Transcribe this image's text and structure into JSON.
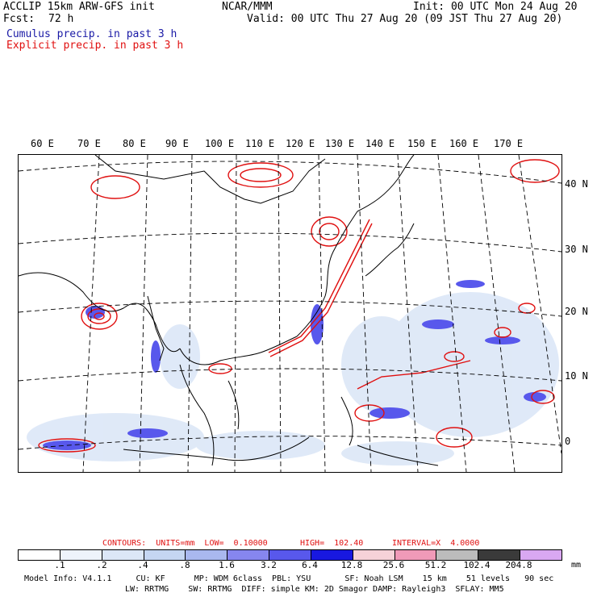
{
  "header": {
    "model_line": "ACCLIP 15km ARW-GFS init",
    "fcst_label": "Fcst:",
    "fcst_value": "72 h",
    "source": "NCAR/MMM",
    "init": "Init: 00 UTC Mon 24 Aug 20",
    "valid": "Valid: 00 UTC Thu 27 Aug 20 (09 JST Thu 27 Aug 20)",
    "legend_cumulus": "Cumulus precip. in past 3 h",
    "legend_explicit": "Explicit precip. in past 3 h"
  },
  "colors": {
    "cumulus": "#1a1aa6",
    "explicit": "#e01010"
  },
  "map": {
    "lon_labels": [
      "60 E",
      "70 E",
      "80 E",
      "90 E",
      "100 E",
      "110 E",
      "120 E",
      "130 E",
      "140 E",
      "150 E",
      "160 E",
      "170 E"
    ],
    "lat_labels": [
      "40 N",
      "30 N",
      "20 N",
      "10 N",
      "0"
    ]
  },
  "contours": {
    "units": "CONTOURS:  UNITS=mm  LOW=  0.10000",
    "high": "HIGH=  102.40",
    "interval": "INTERVAL=X  4.0000"
  },
  "colorbar": {
    "ticks": [
      ".1",
      ".2",
      ".4",
      ".8",
      "1.6",
      "3.2",
      "6.4",
      "12.8",
      "25.6",
      "51.2",
      "102.4",
      "204.8"
    ],
    "units": "mm",
    "colors": [
      "#ffffff",
      "#eef3fb",
      "#dce7f7",
      "#c5d6f2",
      "#a9b8ef",
      "#8686ef",
      "#5858ec",
      "#1818e0",
      "#f6d2d8",
      "#f09ab8",
      "#bcbcbc",
      "#3a3a3a",
      "#d9a8f2"
    ]
  },
  "model_info": {
    "line1": "Model Info: V4.1.1     CU: KF      MP: WDM 6class  PBL: YSU       SF: Noah LSM    15 km    51 levels   90 sec",
    "line2": "LW: RRTMG    SW: RRTMG  DIFF: simple KM: 2D Smagor DAMP: Rayleigh3  SFLAY: MM5"
  }
}
